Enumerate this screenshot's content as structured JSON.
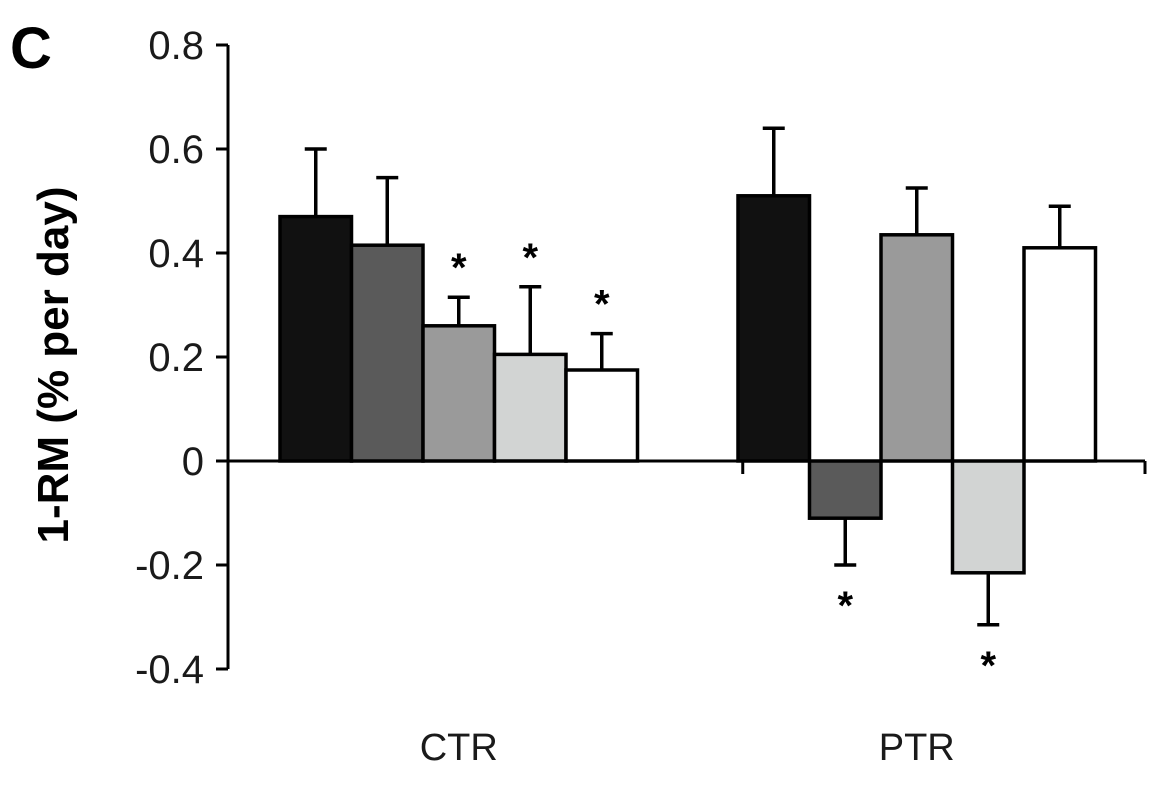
{
  "panel_label": "C",
  "chart_data": {
    "type": "bar",
    "title": "",
    "xlabel": "",
    "ylabel": "1-RM (% per day)",
    "ylim": [
      -0.4,
      0.8
    ],
    "yticks": [
      0.8,
      0.6,
      0.4,
      0.2,
      0,
      -0.2,
      -0.4
    ],
    "ytick_labels": [
      "0.8",
      "0.6",
      "0.4",
      "0.2",
      "0",
      "-0.2",
      "-0.4"
    ],
    "grid": false,
    "legend": "none",
    "groups": [
      {
        "name": "CTR",
        "bars": [
          {
            "value": 0.47,
            "error": 0.13,
            "fill": "#111111",
            "sig": ""
          },
          {
            "value": 0.415,
            "error": 0.13,
            "fill": "#5a5a5a",
            "sig": ""
          },
          {
            "value": 0.26,
            "error": 0.055,
            "fill": "#9a9a9a",
            "sig": "*"
          },
          {
            "value": 0.205,
            "error": 0.13,
            "fill": "#d2d4d3",
            "sig": "*"
          },
          {
            "value": 0.175,
            "error": 0.07,
            "fill": "#ffffff",
            "sig": "*"
          }
        ]
      },
      {
        "name": "PTR",
        "bars": [
          {
            "value": 0.51,
            "error": 0.13,
            "fill": "#111111",
            "sig": ""
          },
          {
            "value": -0.11,
            "error": 0.09,
            "fill": "#5a5a5a",
            "sig": "*"
          },
          {
            "value": 0.435,
            "error": 0.09,
            "fill": "#9a9a9a",
            "sig": ""
          },
          {
            "value": -0.215,
            "error": 0.1,
            "fill": "#d2d4d3",
            "sig": "*"
          },
          {
            "value": 0.41,
            "error": 0.08,
            "fill": "#ffffff",
            "sig": ""
          }
        ]
      }
    ]
  }
}
